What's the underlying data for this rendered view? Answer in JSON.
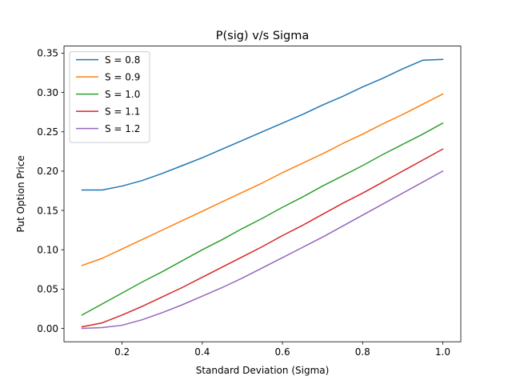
{
  "chart_data": {
    "type": "line",
    "title": "P(sig) v/s Sigma",
    "xlabel": "Standard Deviation (Sigma)",
    "ylabel": "Put Option Price",
    "xlim": [
      0.055,
      1.045
    ],
    "ylim": [
      -0.017,
      0.359
    ],
    "xticks": [
      0.2,
      0.4,
      0.6,
      0.8,
      1.0
    ],
    "xtick_labels": [
      "0.2",
      "0.4",
      "0.6",
      "0.8",
      "1.0"
    ],
    "yticks": [
      0.0,
      0.05,
      0.1,
      0.15,
      0.2,
      0.25,
      0.3,
      0.35
    ],
    "ytick_labels": [
      "0.00",
      "0.05",
      "0.10",
      "0.15",
      "0.20",
      "0.25",
      "0.30",
      "0.35"
    ],
    "grid": false,
    "legend_position": "top-left",
    "x": [
      0.1,
      0.15,
      0.2,
      0.25,
      0.3,
      0.35,
      0.4,
      0.45,
      0.5,
      0.55,
      0.6,
      0.65,
      0.7,
      0.75,
      0.8,
      0.85,
      0.9,
      0.95,
      1.0
    ],
    "series": [
      {
        "name": "S = 0.8",
        "color": "#1f77b4",
        "values": [
          0.176,
          0.176,
          0.181,
          0.188,
          0.197,
          0.207,
          0.217,
          0.228,
          0.239,
          0.25,
          0.261,
          0.272,
          0.284,
          0.295,
          0.307,
          0.318,
          0.33,
          0.341,
          0.342
        ]
      },
      {
        "name": "S = 0.9",
        "color": "#ff7f0e",
        "values": [
          0.08,
          0.089,
          0.101,
          0.113,
          0.125,
          0.137,
          0.149,
          0.161,
          0.173,
          0.185,
          0.198,
          0.21,
          0.222,
          0.235,
          0.247,
          0.26,
          0.272,
          0.285,
          0.298
        ]
      },
      {
        "name": "S = 1.0",
        "color": "#2ca02c",
        "values": [
          0.017,
          0.031,
          0.045,
          0.059,
          0.072,
          0.086,
          0.1,
          0.113,
          0.127,
          0.14,
          0.154,
          0.167,
          0.181,
          0.194,
          0.207,
          0.221,
          0.234,
          0.247,
          0.261
        ]
      },
      {
        "name": "S = 1.1",
        "color": "#d62728",
        "values": [
          0.002,
          0.007,
          0.017,
          0.028,
          0.04,
          0.052,
          0.065,
          0.078,
          0.091,
          0.104,
          0.118,
          0.131,
          0.145,
          0.159,
          0.172,
          0.186,
          0.2,
          0.214,
          0.228
        ]
      },
      {
        "name": "S = 1.2",
        "color": "#9467bd",
        "values": [
          0.0,
          0.001,
          0.004,
          0.011,
          0.02,
          0.03,
          0.041,
          0.052,
          0.064,
          0.077,
          0.09,
          0.103,
          0.116,
          0.13,
          0.144,
          0.158,
          0.172,
          0.186,
          0.2
        ]
      }
    ]
  }
}
